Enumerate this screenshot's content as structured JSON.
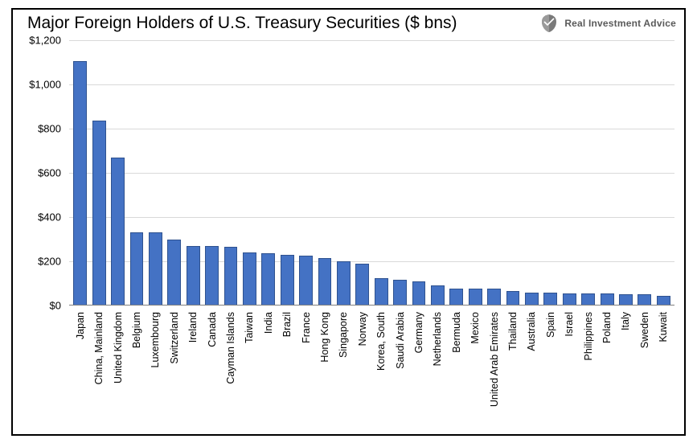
{
  "chart": {
    "type": "bar",
    "title": "Major Foreign Holders of U.S. Treasury Securities ($ bns)",
    "brand": "Real Investment Advice",
    "title_fontsize": 21,
    "label_fontsize": 13,
    "xlabel_fontsize": 12.5,
    "background_color": "#ffffff",
    "border_color": "#000000",
    "grid_color": "#d9d9d9",
    "baseline_color": "#808080",
    "bar_fill": "#4472c4",
    "bar_border": "#2f528f",
    "bar_width": 0.72,
    "ylim": [
      0,
      1200
    ],
    "ytick_step": 200,
    "yticks": [
      0,
      200,
      400,
      600,
      800,
      1000,
      1200
    ],
    "ytick_labels": [
      "$0",
      "$200",
      "$400",
      "$600",
      "$800",
      "$1,000",
      "$1,200"
    ],
    "categories": [
      "Japan",
      "China, Mainland",
      "United Kingdom",
      "Belgium",
      "Luxembourg",
      "Switzerland",
      "Ireland",
      "Canada",
      "Cayman Islands",
      "Taiwan",
      "India",
      "Brazil",
      "France",
      "Hong Kong",
      "Singapore",
      "Norway",
      "Korea, South",
      "Saudi Arabia",
      "Germany",
      "Netherlands",
      "Bermuda",
      "Mexico",
      "United Arab Emirates",
      "Thailand",
      "Australia",
      "Spain",
      "Israel",
      "Philippines",
      "Poland",
      "Italy",
      "Sweden",
      "Kuwait"
    ],
    "values": [
      1105,
      835,
      670,
      330,
      330,
      300,
      270,
      270,
      265,
      240,
      235,
      230,
      225,
      215,
      200,
      190,
      125,
      115,
      110,
      90,
      78,
      78,
      75,
      65,
      60,
      58,
      56,
      55,
      54,
      52,
      50,
      42
    ]
  }
}
